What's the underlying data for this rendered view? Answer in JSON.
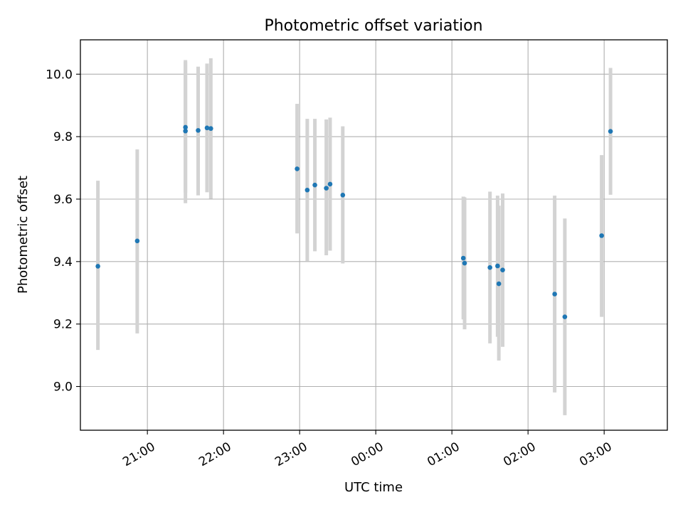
{
  "chart_data": {
    "type": "scatter",
    "title": "Photometric offset variation",
    "xlabel": "UTC time",
    "ylabel": "Photometric offset",
    "x_unit": "hours since 20:00 UTC (night spans midnight)",
    "xlim": [
      0.12,
      7.83
    ],
    "ylim": [
      8.86,
      10.11
    ],
    "x_ticks": [
      {
        "value": 1,
        "label": "21:00"
      },
      {
        "value": 2,
        "label": "22:00"
      },
      {
        "value": 3,
        "label": "23:00"
      },
      {
        "value": 4,
        "label": "00:00"
      },
      {
        "value": 5,
        "label": "01:00"
      },
      {
        "value": 6,
        "label": "02:00"
      },
      {
        "value": 7,
        "label": "03:00"
      }
    ],
    "y_ticks": [
      {
        "value": 9.0,
        "label": "9.0"
      },
      {
        "value": 9.2,
        "label": "9.2"
      },
      {
        "value": 9.4,
        "label": "9.4"
      },
      {
        "value": 9.6,
        "label": "9.6"
      },
      {
        "value": 9.8,
        "label": "9.8"
      },
      {
        "value": 10.0,
        "label": "10.0"
      }
    ],
    "grid": true,
    "point_color": "#1f77b4",
    "errorbar_color": "#d3d3d3",
    "points": [
      {
        "time": "20:21",
        "y": 9.385,
        "ylow": 9.117,
        "yhigh": 9.659
      },
      {
        "time": "20:52",
        "y": 9.466,
        "ylow": 9.17,
        "yhigh": 9.759
      },
      {
        "time": "21:30",
        "y": 9.83,
        "ylow": 9.62,
        "yhigh": 10.04
      },
      {
        "time": "21:30",
        "y": 9.818,
        "ylow": 9.587,
        "yhigh": 10.045
      },
      {
        "time": "21:40",
        "y": 9.82,
        "ylow": 9.612,
        "yhigh": 10.024
      },
      {
        "time": "21:47",
        "y": 9.828,
        "ylow": 9.622,
        "yhigh": 10.034
      },
      {
        "time": "21:50",
        "y": 9.826,
        "ylow": 9.601,
        "yhigh": 10.051
      },
      {
        "time": "22:58",
        "y": 9.697,
        "ylow": 9.49,
        "yhigh": 9.905
      },
      {
        "time": "23:06",
        "y": 9.629,
        "ylow": 9.401,
        "yhigh": 9.857
      },
      {
        "time": "23:12",
        "y": 9.645,
        "ylow": 9.433,
        "yhigh": 9.857
      },
      {
        "time": "23:21",
        "y": 9.635,
        "ylow": 9.42,
        "yhigh": 9.855
      },
      {
        "time": "23:24",
        "y": 9.648,
        "ylow": 9.435,
        "yhigh": 9.861
      },
      {
        "time": "23:34",
        "y": 9.613,
        "ylow": 9.394,
        "yhigh": 9.833
      },
      {
        "time": "01:09",
        "y": 9.411,
        "ylow": 9.215,
        "yhigh": 9.608
      },
      {
        "time": "01:10",
        "y": 9.395,
        "ylow": 9.183,
        "yhigh": 9.606
      },
      {
        "time": "01:30",
        "y": 9.381,
        "ylow": 9.138,
        "yhigh": 9.624
      },
      {
        "time": "01:36",
        "y": 9.386,
        "ylow": 9.159,
        "yhigh": 9.611
      },
      {
        "time": "01:37",
        "y": 9.329,
        "ylow": 9.083,
        "yhigh": 9.579
      },
      {
        "time": "01:40",
        "y": 9.373,
        "ylow": 9.127,
        "yhigh": 9.618
      },
      {
        "time": "02:21",
        "y": 9.296,
        "ylow": 8.981,
        "yhigh": 9.611
      },
      {
        "time": "02:29",
        "y": 9.223,
        "ylow": 8.908,
        "yhigh": 9.538
      },
      {
        "time": "02:58",
        "y": 9.483,
        "ylow": 9.223,
        "yhigh": 9.741
      },
      {
        "time": "03:05",
        "y": 9.817,
        "ylow": 9.614,
        "yhigh": 10.02
      }
    ]
  }
}
